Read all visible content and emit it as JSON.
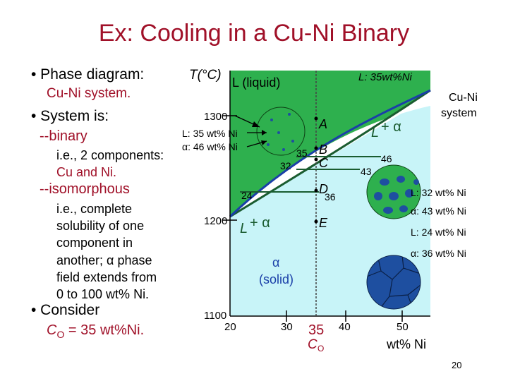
{
  "title": "Ex:  Cooling in a Cu-Ni Binary",
  "left": {
    "b1": "• Phase diagram:",
    "b1_sub": "Cu-Ni system.",
    "b2": "• System is:",
    "binary": "--binary",
    "ie2_a": "i.e., 2 components:",
    "ie2_b": "Cu and Ni.",
    "iso": "--isomorphous",
    "iso_lines": [
      "i.e., complete",
      "solubility of one",
      "component in",
      "another; α phase",
      "field extends from",
      "0 to 100 wt% Ni."
    ],
    "b3": "• Consider",
    "co_c": "C",
    "co_o": "O",
    "co_rest": " = 35 wt%Ni."
  },
  "diagram": {
    "t_axis_label": "T(°C)",
    "liquid_label": "L (liquid)",
    "l_35": "L: 35wt%Ni",
    "cuni_1": "Cu-Ni",
    "cuni_2": "system",
    "y_ticks": [
      "1300",
      "1200",
      "1100"
    ],
    "x_ticks": [
      "20",
      "30",
      "35",
      "40",
      "50"
    ],
    "x_label": "wt% Ni",
    "co_c": "C",
    "co_o": "O",
    "point_A": "A",
    "point_B": "B",
    "point_C": "C",
    "point_D": "D",
    "point_E": "E",
    "v35": "35",
    "v32": "32",
    "v46": "46",
    "v43": "43",
    "v24": "24",
    "v36": "36",
    "l_plus_a_upper_l": "L",
    "l_plus_a_upper_rest": "+ α",
    "l_plus_a_lower_l": "L",
    "l_plus_a_lower_rest": "+ α",
    "alpha_1": "α",
    "alpha_2": "(solid)",
    "annot_b1": "L: 35 wt% Ni",
    "annot_b2": "α: 46 wt% Ni",
    "annot_d1": "L: 32 wt% Ni",
    "annot_d2": "α: 43 wt% Ni",
    "annot_e1": "L: 24 wt% Ni",
    "annot_e2": "α: 36 wt% Ni"
  },
  "page_number": "20",
  "colors": {
    "title": "#a01028",
    "liquid_field": "#2eb04e",
    "solid_field": "#c8f4f8",
    "liquidus": "#1a5c30",
    "solidus": "#1a3fa8",
    "grain": "#1e4fa0"
  }
}
